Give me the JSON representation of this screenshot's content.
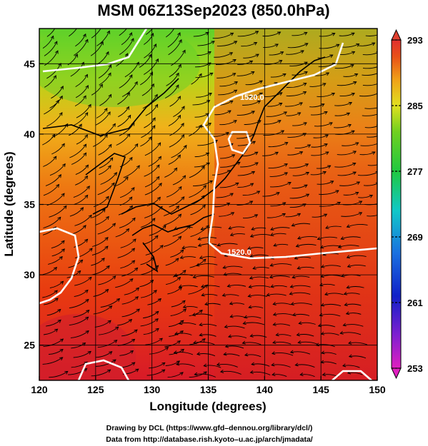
{
  "title": "MSM 06Z13Sep2023 (850.0hPa)",
  "map": {
    "xlabel": "Longitude (degrees)",
    "ylabel": "Latitude  (degrees)",
    "xlim": [
      120,
      150
    ],
    "ylim": [
      22.5,
      47.5
    ],
    "xticks": [
      "120",
      "125",
      "130",
      "135",
      "140",
      "145",
      "150"
    ],
    "yticks": [
      "25",
      "30",
      "35",
      "40",
      "45"
    ],
    "field": "temperature (K)",
    "streamlines": "wind"
  },
  "contours": {
    "labels": [
      "1520.0",
      "1520.0"
    ]
  },
  "colorbar": {
    "ticks": [
      "293",
      "285",
      "277",
      "269",
      "261",
      "253"
    ],
    "min": 253,
    "max": 293
  },
  "credits": {
    "line1": "Drawing by DCL (https://www.gfd–dennou.org/library/dcl/)",
    "line2": "Data from http://database.rish.kyoto–u.ac.jp/arch/jmadata/"
  },
  "colors": {
    "warm": "#e83a10",
    "mid": "#f0a018",
    "cool": "#9ad020",
    "cold": "#3ec830",
    "contour": "#ffffff"
  }
}
